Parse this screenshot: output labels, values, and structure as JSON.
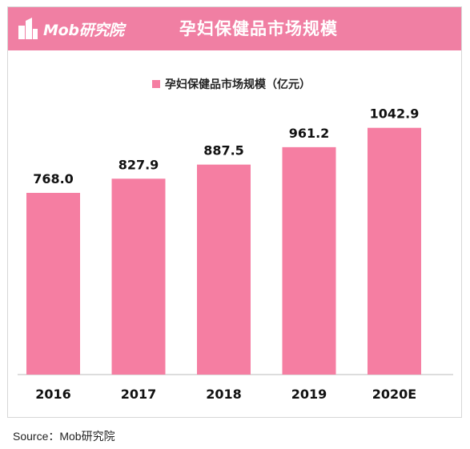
{
  "header": {
    "brand": "Mob研究院",
    "title": "孕妇保健品市场规模"
  },
  "source": "Source：Mob研究院",
  "colors": {
    "header_bg": "#f07fa3",
    "bar": "#f57ea2"
  },
  "chart_data": {
    "type": "bar",
    "title": "",
    "categories": [
      "2016",
      "2017",
      "2018",
      "2019",
      "2020E"
    ],
    "series": [
      {
        "name": "孕妇保健品市场规模（亿元）",
        "values": [
          768.0,
          827.9,
          887.5,
          961.2,
          1042.9
        ]
      }
    ],
    "value_labels": [
      "768.0",
      "827.9",
      "887.5",
      "961.2",
      "1042.9"
    ],
    "xlabel": "",
    "ylabel": "",
    "legend": "top-center",
    "grid": false
  }
}
